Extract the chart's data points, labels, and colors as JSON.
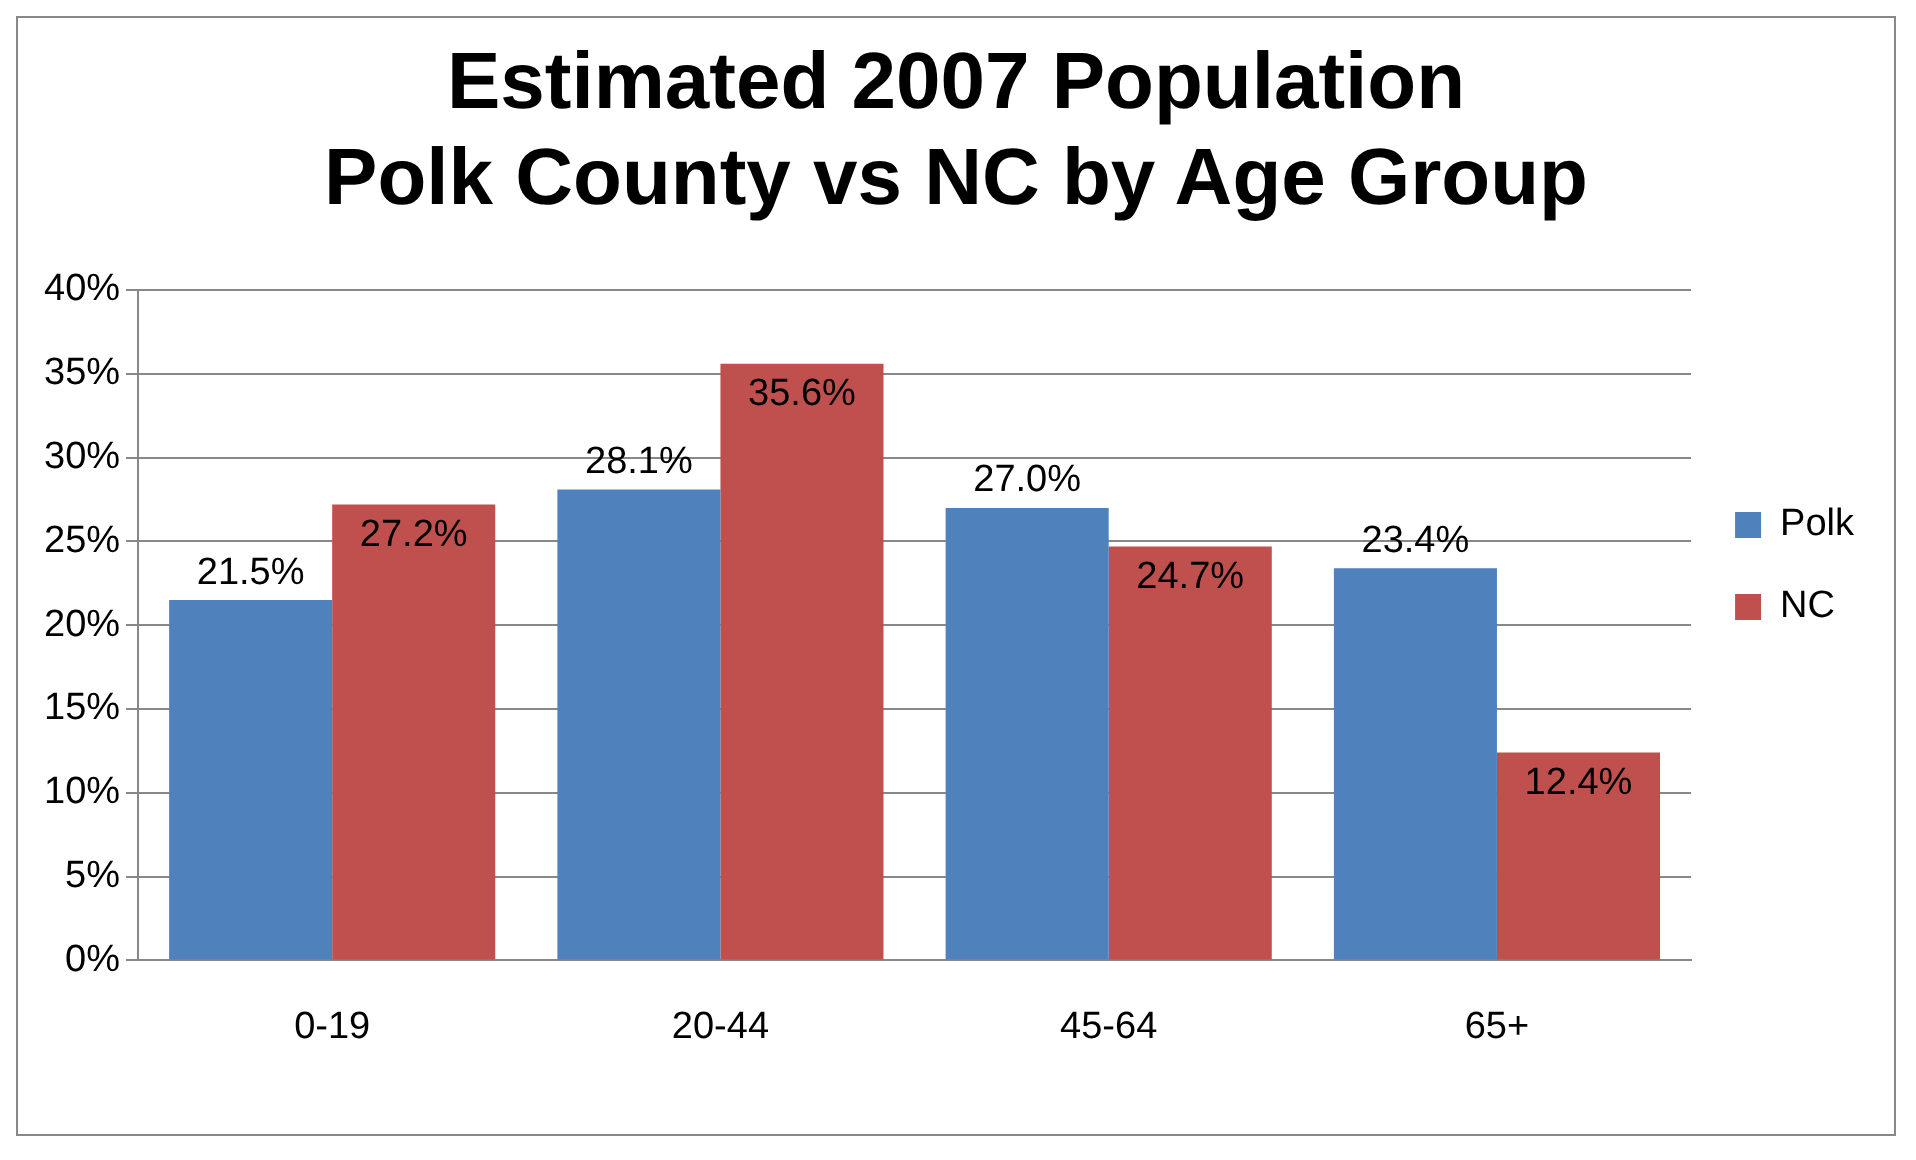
{
  "chart_data": {
    "type": "bar",
    "title": "Estimated 2007 Population\nPolk County vs NC by Age Group",
    "categories": [
      "0-19",
      "20-44",
      "45-64",
      "65+"
    ],
    "series": [
      {
        "name": "Polk",
        "color": "#4f81bd",
        "values": [
          21.5,
          28.1,
          27.0,
          23.4
        ]
      },
      {
        "name": "NC",
        "color": "#c0504d",
        "values": [
          27.2,
          35.6,
          24.7,
          12.4
        ]
      }
    ],
    "ylim": [
      0,
      40
    ],
    "yticks": [
      {
        "value": 0,
        "label": "0%"
      },
      {
        "value": 5,
        "label": "5%"
      },
      {
        "value": 10,
        "label": "10%"
      },
      {
        "value": 15,
        "label": "15%"
      },
      {
        "value": 20,
        "label": "20%"
      },
      {
        "value": 25,
        "label": "25%"
      },
      {
        "value": 30,
        "label": "30%"
      },
      {
        "value": 35,
        "label": "35%"
      },
      {
        "value": 40,
        "label": "40%"
      }
    ],
    "value_labels": [
      [
        "21.5%",
        "28.1%",
        "27.0%",
        "23.4%"
      ],
      [
        "27.2%",
        "35.6%",
        "24.7%",
        "12.4%"
      ]
    ],
    "grid": "y",
    "legend": "right"
  }
}
